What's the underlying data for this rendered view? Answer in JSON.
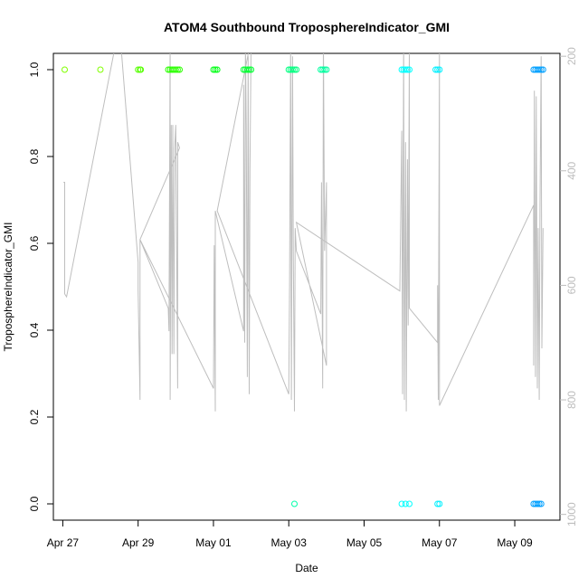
{
  "chart_data": {
    "type": "scatter",
    "title": "ATOM4 Southbound TroposphereIndicator_GMI",
    "xlabel": "Date",
    "ylabel": "TroposphereIndicator_GMI",
    "x_ticks": [
      "Apr 27",
      "Apr 29",
      "May 01",
      "May 03",
      "May 05",
      "May 07",
      "May 09"
    ],
    "y_ticks": [
      "0.0",
      "0.2",
      "0.4",
      "0.6",
      "0.8",
      "1.0"
    ],
    "y_right_ticks": [
      "200",
      "400",
      "600",
      "800",
      "1000"
    ],
    "xlim_days": [
      26.75,
      40.2
    ],
    "ylim": [
      0,
      1
    ],
    "y_right_lim": [
      1010,
      195
    ],
    "y_right_reversed": true,
    "grid": false,
    "line_color": "#bebebe",
    "points": [
      {
        "d": 27.05,
        "v": 1,
        "c": "#80ff00"
      },
      {
        "d": 28.0,
        "v": 1,
        "c": "#80ff00"
      },
      {
        "d": 29.0,
        "v": 1,
        "c": "#55ff00"
      },
      {
        "d": 29.05,
        "v": 1,
        "c": "#55ff00"
      },
      {
        "d": 29.07,
        "v": 1,
        "c": "#55ff00"
      },
      {
        "d": 29.8,
        "v": 1,
        "c": "#2bff00"
      },
      {
        "d": 29.85,
        "v": 1,
        "c": "#2bff00"
      },
      {
        "d": 29.9,
        "v": 1,
        "c": "#2bff00"
      },
      {
        "d": 29.95,
        "v": 1,
        "c": "#2bff00"
      },
      {
        "d": 30.0,
        "v": 1,
        "c": "#2bff00"
      },
      {
        "d": 30.05,
        "v": 1,
        "c": "#2bff00"
      },
      {
        "d": 30.1,
        "v": 1,
        "c": "#2bff00"
      },
      {
        "d": 31.0,
        "v": 1,
        "c": "#00ff15"
      },
      {
        "d": 31.05,
        "v": 1,
        "c": "#00ff15"
      },
      {
        "d": 31.1,
        "v": 1,
        "c": "#00ff15"
      },
      {
        "d": 31.8,
        "v": 1,
        "c": "#00ff30"
      },
      {
        "d": 31.85,
        "v": 1,
        "c": "#00ff30"
      },
      {
        "d": 31.9,
        "v": 1,
        "c": "#00ff30"
      },
      {
        "d": 31.95,
        "v": 1,
        "c": "#00ff30"
      },
      {
        "d": 32.0,
        "v": 1,
        "c": "#00ff30"
      },
      {
        "d": 33.0,
        "v": 1,
        "c": "#00ff80"
      },
      {
        "d": 33.05,
        "v": 1,
        "c": "#00ff80"
      },
      {
        "d": 33.1,
        "v": 1,
        "c": "#00ff80"
      },
      {
        "d": 33.15,
        "v": 1,
        "c": "#00ff80"
      },
      {
        "d": 33.2,
        "v": 1,
        "c": "#00ff80"
      },
      {
        "d": 33.15,
        "v": 0,
        "c": "#00ffaa"
      },
      {
        "d": 33.85,
        "v": 1,
        "c": "#00ffa0"
      },
      {
        "d": 33.9,
        "v": 1,
        "c": "#00ffa0"
      },
      {
        "d": 33.95,
        "v": 1,
        "c": "#00ffa0"
      },
      {
        "d": 34.0,
        "v": 1,
        "c": "#00ffa0"
      },
      {
        "d": 36.0,
        "v": 1,
        "c": "#00ffff"
      },
      {
        "d": 36.05,
        "v": 1,
        "c": "#00ffff"
      },
      {
        "d": 36.1,
        "v": 1,
        "c": "#00ffff"
      },
      {
        "d": 36.15,
        "v": 1,
        "c": "#00ffff"
      },
      {
        "d": 36.2,
        "v": 1,
        "c": "#00ffff"
      },
      {
        "d": 36.0,
        "v": 0,
        "c": "#00ffff"
      },
      {
        "d": 36.1,
        "v": 0,
        "c": "#00ffff"
      },
      {
        "d": 36.2,
        "v": 0,
        "c": "#00ffff"
      },
      {
        "d": 36.9,
        "v": 1,
        "c": "#00f0ff"
      },
      {
        "d": 36.95,
        "v": 1,
        "c": "#00f0ff"
      },
      {
        "d": 37.0,
        "v": 1,
        "c": "#00f0ff"
      },
      {
        "d": 36.95,
        "v": 0,
        "c": "#00f0ff"
      },
      {
        "d": 37.0,
        "v": 0,
        "c": "#00f0ff"
      },
      {
        "d": 39.5,
        "v": 1,
        "c": "#00a0ff"
      },
      {
        "d": 39.55,
        "v": 1,
        "c": "#00a0ff"
      },
      {
        "d": 39.6,
        "v": 1,
        "c": "#00a0ff"
      },
      {
        "d": 39.65,
        "v": 1,
        "c": "#00a0ff"
      },
      {
        "d": 39.7,
        "v": 1,
        "c": "#00a0ff"
      },
      {
        "d": 39.75,
        "v": 1,
        "c": "#00a0ff"
      },
      {
        "d": 39.5,
        "v": 0,
        "c": "#00a0ff"
      },
      {
        "d": 39.55,
        "v": 0,
        "c": "#00a0ff"
      },
      {
        "d": 39.6,
        "v": 0,
        "c": "#00a0ff"
      },
      {
        "d": 39.65,
        "v": 0,
        "c": "#00a0ff"
      },
      {
        "d": 39.7,
        "v": 0,
        "c": "#00a0ff"
      }
    ],
    "pressure_line": [
      [
        27.02,
        420
      ],
      [
        27.05,
        420
      ],
      [
        27.05,
        615
      ],
      [
        27.1,
        620
      ],
      [
        28.5,
        145
      ],
      [
        29.0,
        560
      ],
      [
        29.0,
        610
      ],
      [
        29.05,
        800
      ],
      [
        29.05,
        600
      ],
      [
        29.05,
        520
      ],
      [
        29.8,
        640
      ],
      [
        29.82,
        680
      ],
      [
        29.85,
        170
      ],
      [
        29.85,
        800
      ],
      [
        29.88,
        320
      ],
      [
        29.9,
        720
      ],
      [
        29.92,
        320
      ],
      [
        29.95,
        720
      ],
      [
        29.97,
        360
      ],
      [
        30.0,
        320
      ],
      [
        30.05,
        780
      ],
      [
        30.05,
        350
      ],
      [
        30.1,
        360
      ],
      [
        29.05,
        520
      ],
      [
        31.0,
        780
      ],
      [
        31.02,
        530
      ],
      [
        31.05,
        820
      ],
      [
        31.05,
        470
      ],
      [
        31.8,
        680
      ],
      [
        31.8,
        250
      ],
      [
        31.83,
        700
      ],
      [
        31.85,
        180
      ],
      [
        31.87,
        320
      ],
      [
        31.9,
        760
      ],
      [
        31.92,
        200
      ],
      [
        31.95,
        790
      ],
      [
        31.97,
        400
      ],
      [
        32.0,
        170
      ],
      [
        31.1,
        470
      ],
      [
        33.0,
        790
      ],
      [
        33.02,
        600
      ],
      [
        33.05,
        170
      ],
      [
        33.07,
        800
      ],
      [
        33.1,
        200
      ],
      [
        33.12,
        540
      ],
      [
        33.15,
        820
      ],
      [
        33.17,
        500
      ],
      [
        33.2,
        540
      ],
      [
        33.85,
        650
      ],
      [
        33.87,
        420
      ],
      [
        33.9,
        780
      ],
      [
        33.92,
        170
      ],
      [
        33.95,
        540
      ],
      [
        34.0,
        420
      ],
      [
        34.0,
        740
      ],
      [
        33.2,
        490
      ],
      [
        35.95,
        610
      ],
      [
        36.0,
        330
      ],
      [
        36.02,
        790
      ],
      [
        36.05,
        170
      ],
      [
        36.07,
        800
      ],
      [
        36.1,
        350
      ],
      [
        36.12,
        820
      ],
      [
        36.15,
        380
      ],
      [
        36.17,
        670
      ],
      [
        36.2,
        190
      ],
      [
        36.2,
        640
      ],
      [
        36.95,
        700
      ],
      [
        36.95,
        600
      ],
      [
        36.97,
        800
      ],
      [
        37.0,
        180
      ],
      [
        37.0,
        810
      ],
      [
        39.5,
        460
      ],
      [
        39.5,
        740
      ],
      [
        39.52,
        260
      ],
      [
        39.55,
        760
      ],
      [
        39.57,
        270
      ],
      [
        39.6,
        780
      ],
      [
        39.62,
        500
      ],
      [
        39.65,
        800
      ],
      [
        39.67,
        470
      ],
      [
        39.7,
        200
      ],
      [
        39.72,
        710
      ],
      [
        39.75,
        500
      ]
    ]
  }
}
